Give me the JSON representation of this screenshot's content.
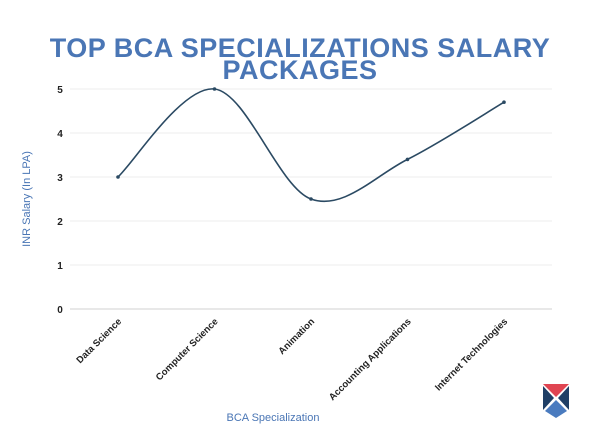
{
  "chart_data": {
    "type": "line",
    "title_lines": [
      "TOP BCA SPECIALIZATIONS SALARY",
      "PACKAGES"
    ],
    "xlabel": "BCA Specialization",
    "ylabel": "INR Salary (In LPA)",
    "categories": [
      "Data Science",
      "Computer Science",
      "Animation",
      "Accounting Applications",
      "Internet Technologies"
    ],
    "values": [
      3,
      5,
      2.5,
      3.4,
      4.7
    ],
    "ylim": [
      0,
      5
    ],
    "yticks": [
      "0",
      "1",
      "2",
      "3",
      "4",
      "5"
    ],
    "grid": true,
    "smooth": true,
    "colors": {
      "line": "#2b4a63",
      "title": "#4a76b5",
      "axis_label": "#4a76b5",
      "grid": "#ececec"
    }
  },
  "logo": {
    "colors": {
      "top": "#e04552",
      "left": "#1f3f66",
      "right": "#1f3f66",
      "bottom": "#4a7bbf"
    }
  }
}
